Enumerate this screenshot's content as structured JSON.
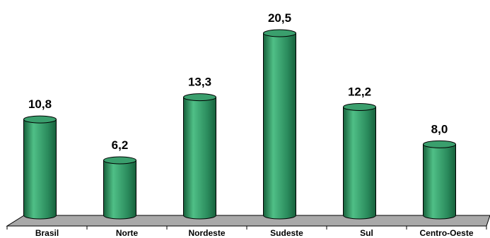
{
  "chart_data": {
    "type": "bar",
    "style": "3d-cylinder",
    "categories": [
      "Brasil",
      "Norte",
      "Nordeste",
      "Sudeste",
      "Sul",
      "Centro-Oeste"
    ],
    "values": [
      10.8,
      6.2,
      13.3,
      20.5,
      12.2,
      8.0
    ],
    "value_labels": [
      "10,8",
      "6,2",
      "13,3",
      "20,5",
      "12,2",
      "8,0"
    ],
    "title": "",
    "xlabel": "",
    "ylabel": "",
    "ylim": [
      0,
      20.5
    ],
    "grid": false,
    "legend": "none",
    "colors": {
      "bar_body": "#2a8a5c",
      "bar_highlight": "#4fbf86",
      "bar_shadow": "#17603b",
      "bar_top": "#3a9f6d",
      "outline": "#000000",
      "floor": "#a9a9a9"
    }
  }
}
